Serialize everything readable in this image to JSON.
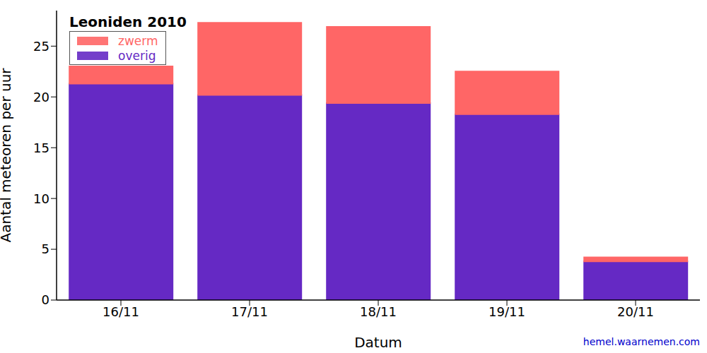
{
  "chart_data": {
    "type": "bar",
    "title": "Leoniden 2010",
    "x_label": "Datum",
    "y_label": "Aantal meteoren per uur",
    "annotation": "hemel.waarnemen.com",
    "categories": [
      "16/11",
      "17/11",
      "18/11",
      "19/11",
      "20/11"
    ],
    "series": [
      {
        "name": "zwerm",
        "color": "#ff6666",
        "values": [
          1.7,
          7.1,
          7.5,
          4.2,
          0.4
        ]
      },
      {
        "name": "overig",
        "color": "#6529c4",
        "values": [
          21.3,
          20.2,
          19.4,
          18.3,
          3.8
        ]
      }
    ],
    "stacked": true,
    "legend": "upper left",
    "ylim": [
      0,
      28.5
    ],
    "yticks": [
      0,
      5,
      10,
      15,
      20,
      25
    ],
    "grid": false
  }
}
